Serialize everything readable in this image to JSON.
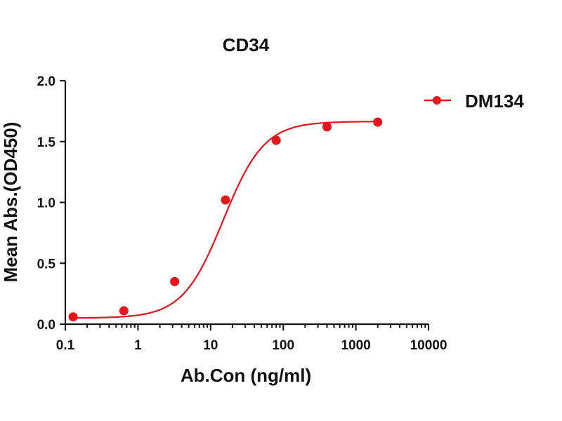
{
  "chart_data": {
    "type": "scatter",
    "title": "CD34",
    "xlabel": "Ab.Con (ng/ml)",
    "ylabel": "Mean Abs.(OD450)",
    "x_scale": "log",
    "xlim": [
      0.1,
      10000
    ],
    "ylim": [
      0,
      2.0
    ],
    "x_ticks": [
      0.1,
      1,
      10,
      100,
      1000,
      10000
    ],
    "x_tick_labels": [
      "0.1",
      "1",
      "10",
      "100",
      "1000",
      "10000"
    ],
    "y_ticks": [
      0,
      0.5,
      1.0,
      1.5,
      2.0
    ],
    "y_tick_labels": [
      "0.0",
      "0.5",
      "1.0",
      "1.5",
      "2.0"
    ],
    "grid": false,
    "legend_position": "top-right",
    "series": [
      {
        "name": "DM134",
        "color": "#e8141c",
        "x": [
          0.128,
          0.64,
          3.2,
          16,
          80,
          400,
          2000
        ],
        "y": [
          0.06,
          0.11,
          0.35,
          1.02,
          1.51,
          1.62,
          1.66
        ],
        "fit": "four-parameter-logistic"
      }
    ]
  }
}
